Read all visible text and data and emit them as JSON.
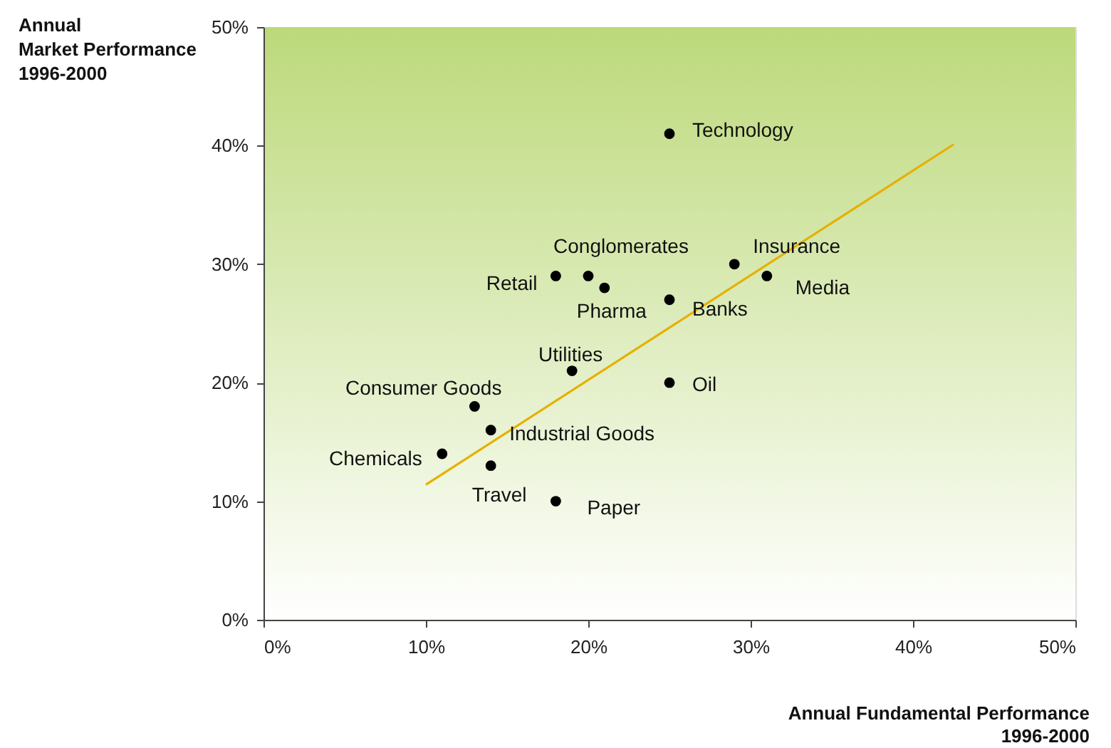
{
  "chart_data": {
    "type": "scatter",
    "xlabel": "Annual Fundamental Performance 1996-2000",
    "ylabel": "Annual Market Performance 1996-2000",
    "series": [
      {
        "color": "#000000",
        "marker": "circle",
        "x": [
          25,
          18,
          20,
          21,
          29,
          31,
          25,
          19,
          25,
          13,
          14,
          11,
          14,
          18
        ],
        "values": [
          41,
          29,
          29,
          28,
          30,
          29,
          27,
          21,
          20,
          18,
          16,
          14,
          13,
          10
        ]
      },
      {
        "type": "line",
        "color": "#e6b000",
        "line_style": "solid",
        "x": [
          10,
          42.5
        ],
        "values": [
          11.4,
          40.1
        ]
      }
    ],
    "annotations": [
      {
        "text": "Technology",
        "x": 25,
        "y": 41
      },
      {
        "text": "Retail",
        "x": 18,
        "y": 29
      },
      {
        "text": "Conglomerates",
        "x": 20,
        "y": 29
      },
      {
        "text": "Pharma",
        "x": 21,
        "y": 28
      },
      {
        "text": "Insurance",
        "x": 29,
        "y": 30
      },
      {
        "text": "Media",
        "x": 31,
        "y": 29
      },
      {
        "text": "Banks",
        "x": 25,
        "y": 27
      },
      {
        "text": "Utilities",
        "x": 19,
        "y": 21
      },
      {
        "text": "Oil",
        "x": 25,
        "y": 20
      },
      {
        "text": "Consumer Goods",
        "x": 13,
        "y": 18
      },
      {
        "text": "Industrial Goods",
        "x": 14,
        "y": 16
      },
      {
        "text": "Chemicals",
        "x": 11,
        "y": 14
      },
      {
        "text": "Travel",
        "x": 14,
        "y": 13
      },
      {
        "text": "Paper",
        "x": 18,
        "y": 10
      }
    ],
    "xlim": [
      0,
      50
    ],
    "ylim": [
      0,
      50
    ],
    "xticks": [
      {
        "value": 0,
        "label": "0%"
      },
      {
        "value": 10,
        "label": "10%"
      },
      {
        "value": 20,
        "label": "20%"
      },
      {
        "value": 30,
        "label": "30%"
      },
      {
        "value": 40,
        "label": "40%"
      },
      {
        "value": 50,
        "label": "50%"
      }
    ],
    "yticks": [
      {
        "value": 0,
        "label": "0%"
      },
      {
        "value": 10,
        "label": "10%"
      },
      {
        "value": 20,
        "label": "20%"
      },
      {
        "value": 30,
        "label": "30%"
      },
      {
        "value": 40,
        "label": "40%"
      },
      {
        "value": 50,
        "label": "50%"
      }
    ],
    "grid": false
  }
}
